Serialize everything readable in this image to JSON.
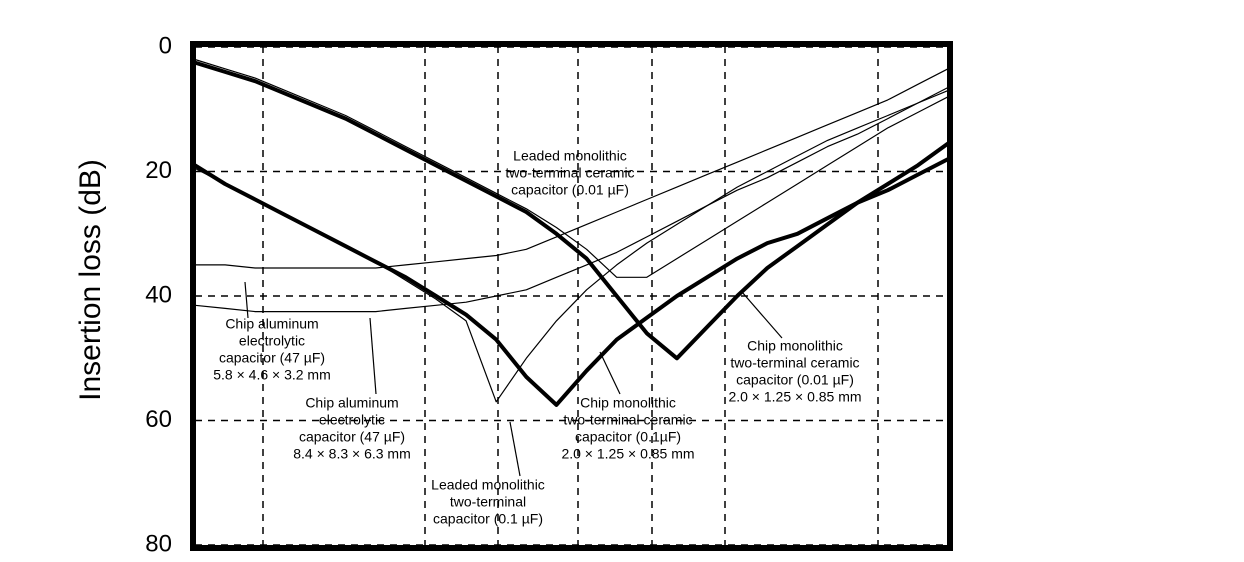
{
  "chart_data": {
    "type": "line",
    "y_label": "Insertion loss (dB)",
    "ylim": [
      0,
      80
    ],
    "yticks": [
      0,
      20,
      40,
      60,
      80
    ],
    "y_inverted": true,
    "grid": true,
    "categories": [
      null,
      null,
      null,
      null,
      null,
      null,
      null,
      null,
      null,
      null,
      null,
      null,
      null,
      null,
      null,
      null,
      null,
      null,
      null,
      null,
      null,
      null,
      null,
      null,
      null,
      null
    ],
    "series": [
      {
        "color": "#000000",
        "width": 4,
        "values": [
          2.5,
          4,
          5.5,
          7.5,
          9.5,
          11.5,
          14,
          16.5,
          19,
          21.5,
          24,
          26.5,
          30,
          34,
          40,
          46,
          50,
          45,
          40,
          35.5,
          32,
          28.5,
          25,
          22,
          19,
          15.5
        ]
      },
      {
        "color": "#000000",
        "width": 1.2,
        "values": [
          2,
          3.5,
          5,
          7,
          9,
          11,
          13.5,
          16,
          18.5,
          21,
          23.5,
          26,
          29,
          32.5,
          37,
          37,
          34,
          31,
          28,
          25,
          22,
          19,
          16,
          13,
          10.5,
          8
        ]
      },
      {
        "color": "#000000",
        "width": 4,
        "values": [
          19,
          22,
          24.5,
          27,
          29.5,
          32,
          34.5,
          37,
          40,
          43,
          47,
          53,
          57.5,
          52,
          47,
          43.5,
          40,
          37,
          34,
          31.5,
          30,
          27.5,
          25,
          23,
          20.5,
          18
        ]
      },
      {
        "color": "#000000",
        "width": 1.2,
        "values": [
          19.5,
          22,
          24.5,
          27,
          29.5,
          32,
          34.5,
          37.5,
          40.5,
          44,
          57,
          50,
          44,
          39,
          35,
          31.5,
          28.5,
          25.5,
          22.5,
          20,
          17.5,
          15,
          13,
          11,
          9,
          7
        ]
      },
      {
        "color": "#000000",
        "width": 1.2,
        "values": [
          35,
          35,
          35.5,
          35.5,
          35.5,
          35.5,
          35.5,
          35,
          34.5,
          34,
          33.5,
          32.5,
          30.5,
          28.5,
          26.5,
          24.5,
          22.5,
          20.5,
          18.5,
          16.5,
          14.5,
          12.5,
          10.5,
          8.5,
          6,
          3.5
        ]
      },
      {
        "color": "#000000",
        "width": 1.2,
        "values": [
          41.5,
          42,
          42.5,
          42.5,
          42.5,
          42.5,
          42.5,
          42,
          41.5,
          41,
          40,
          39,
          37,
          35,
          33,
          30.5,
          28,
          25.5,
          23,
          21,
          18.5,
          16,
          14,
          11.5,
          9,
          6.5
        ]
      }
    ],
    "annotations": [
      {
        "lines": [
          "Leaded monolithic",
          "two-terminal ceramic",
          "capacitor (0.01 µF)"
        ]
      },
      {
        "lines": [
          "Chip aluminum",
          "electrolytic",
          "capacitor (47 µF)",
          "5.8 × 4.6 × 3.2 mm"
        ]
      },
      {
        "lines": [
          "Chip aluminum",
          "electrolytic",
          "capacitor (47 µF)",
          "8.4 × 8.3 × 6.3 mm"
        ]
      },
      {
        "lines": [
          "Leaded monolithic",
          "two-terminal",
          "capacitor (0.1 µF)"
        ]
      },
      {
        "lines": [
          "Chip monolithic",
          "two-terminal ceramic",
          "capacitor (0.1µF)",
          "2.0 × 1.25 × 0.85 mm"
        ]
      },
      {
        "lines": [
          "Chip monolithic",
          "two-terminal ceramic",
          "capacitor (0.01 µF)",
          "2.0 × 1.25 × 0.85 mm"
        ]
      }
    ]
  }
}
